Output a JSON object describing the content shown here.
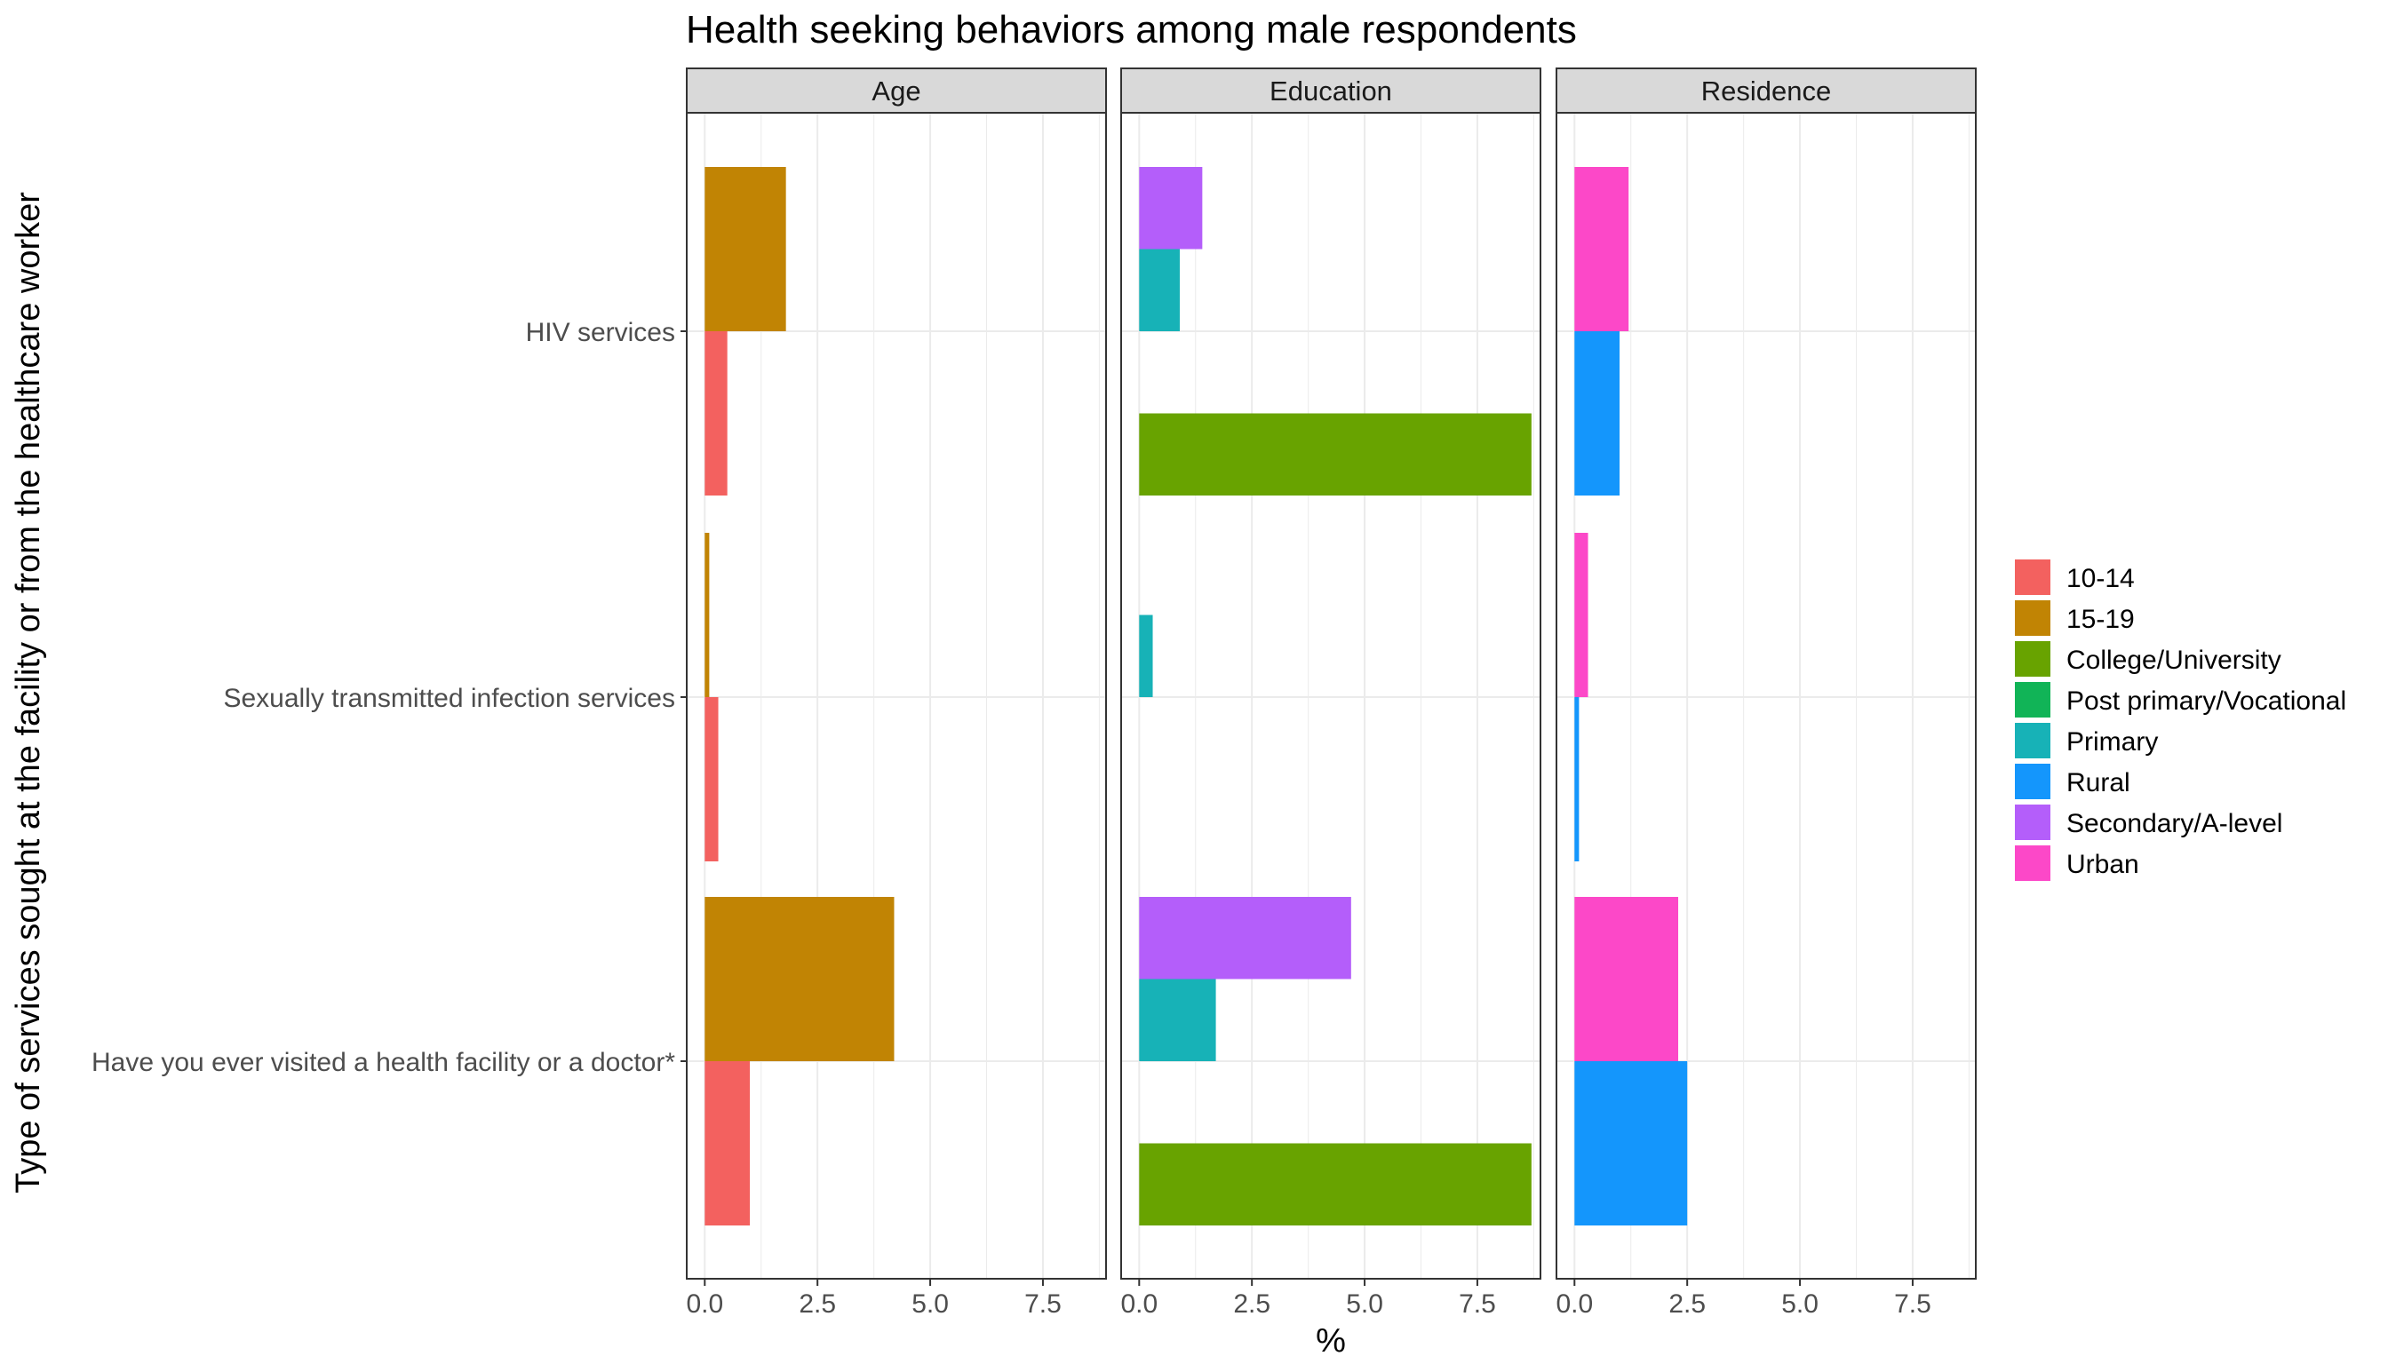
{
  "chart_data": {
    "type": "bar",
    "orientation": "horizontal",
    "title": "Health seeking behaviors among male respondents",
    "xlabel": "%",
    "ylabel": "Type of services sought at the facility or from the healthcare worker",
    "xlim": [
      -0.4,
      8.9
    ],
    "x_ticks": [
      "0.0",
      "2.5",
      "5.0",
      "7.5"
    ],
    "x_tick_values": [
      0,
      2.5,
      5,
      7.5
    ],
    "grid": true,
    "legend_position": "right",
    "categories": [
      "HIV services",
      "Sexually transmitted infection services",
      "Have you ever visited a health facility or a doctor*"
    ],
    "legend": [
      {
        "name": "10-14",
        "color": "#F8766D"
      },
      {
        "name": "15-19",
        "color": "#C49A00"
      },
      {
        "name": "College/University",
        "color": "#53B400"
      },
      {
        "name": "Post primary/Vocational",
        "color": "#00C094"
      },
      {
        "name": "Primary",
        "color": "#00B6EB"
      },
      {
        "name": "Rural",
        "color": "#06A4FF"
      },
      {
        "name": "Secondary/A-level",
        "color": "#A58AFF"
      },
      {
        "name": "Urban",
        "color": "#FB61D7"
      }
    ],
    "colors": {
      "10-14": "#F3615F",
      "15-19": "#C18404",
      "College/University": "#68A300",
      "Post primary/Vocational": "#11B457",
      "Primary": "#17B2B7",
      "Rural": "#1496FC",
      "Secondary/A-level": "#B45EFA",
      "Urban": "#FC48C8"
    },
    "panels": [
      {
        "strip": "Age",
        "n_slots": 2,
        "series": [
          {
            "name": "10-14",
            "slot": 0,
            "values": [
              0.5,
              0.3,
              1.0
            ]
          },
          {
            "name": "15-19",
            "slot": 1,
            "values": [
              1.8,
              0.1,
              4.2
            ]
          }
        ]
      },
      {
        "strip": "Education",
        "n_slots": 4,
        "series": [
          {
            "name": "College/University",
            "slot": 0,
            "values": [
              8.7,
              0,
              8.7
            ]
          },
          {
            "name": "Post primary/Vocational",
            "slot": 1,
            "values": [
              0,
              0,
              0
            ]
          },
          {
            "name": "Primary",
            "slot": 2,
            "values": [
              0.9,
              0.3,
              1.7
            ]
          },
          {
            "name": "Secondary/A-level",
            "slot": 3,
            "values": [
              1.4,
              0,
              4.7
            ]
          }
        ]
      },
      {
        "strip": "Residence",
        "n_slots": 2,
        "series": [
          {
            "name": "Rural",
            "slot": 0,
            "values": [
              1.0,
              0.1,
              2.5
            ]
          },
          {
            "name": "Urban",
            "slot": 1,
            "values": [
              1.2,
              0.3,
              2.3
            ]
          }
        ]
      }
    ]
  }
}
